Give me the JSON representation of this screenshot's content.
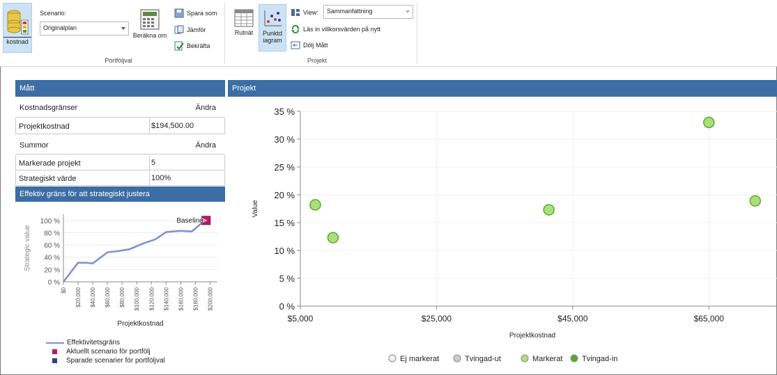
{
  "ribbon": {
    "kostnad_label": "kostnad",
    "scenario_label": "Scenario:",
    "scenario_value": "Originalplan",
    "berakna_om": "Beräkna om",
    "spara_som": "Spara som",
    "jamfor": "Jämför",
    "bekrafta": "Bekräfta",
    "group_portfolj": "Portföljval",
    "rutnat": "Rutnät",
    "punktdiagram_line1": "Punktd",
    "punktdiagram_line2": "iagram",
    "view_label": "View:",
    "view_value": "Sammanfattning",
    "las_in": "Läs in villkorsvärden på nytt",
    "dolj_matt": "Dölj Mått",
    "group_projekt": "Projekt"
  },
  "matt": {
    "header": "Mått",
    "rows": [
      {
        "key": "Kostnadsgränser",
        "value": "Ändra"
      },
      {
        "key": "Projektkostnad",
        "value": "$194,500.00"
      },
      {
        "key": "Summor",
        "value": "Ändra"
      },
      {
        "key": "Markerade projekt",
        "value": "5"
      },
      {
        "key": "Strategiskt värde",
        "value": "100%"
      }
    ]
  },
  "frontier": {
    "header": "Effektiv gräns för att strategiskt justera",
    "baseline_label": "Baseline",
    "legend": [
      {
        "label": "Effektivitetsgräns",
        "color": "#7b8fd0"
      },
      {
        "label": "Aktuellt scenario för portfölj",
        "color": "#c0166a"
      },
      {
        "label": "Sparade scenarier för portföljval",
        "color": "#2d3f8f"
      }
    ]
  },
  "chart_data": [
    {
      "type": "line",
      "title": "",
      "xlabel": "Projektkostnad",
      "ylabel": "Strategic value",
      "x_tick_labels": [
        "$0",
        "$20,000",
        "$40,000",
        "$60,000",
        "$80,000",
        "$100,000",
        "$120,000",
        "$140,000",
        "$160,000",
        "$180,000",
        "$200,000"
      ],
      "y_tick_labels": [
        "0 %",
        "20 %",
        "40 %",
        "60 %",
        "80 %",
        "100 %"
      ],
      "xlim": [
        0,
        210000
      ],
      "ylim": [
        0,
        110
      ],
      "series": [
        {
          "name": "Effektivitetsgräns",
          "x": [
            0,
            20000,
            30000,
            40000,
            60000,
            75000,
            90000,
            110000,
            125000,
            140000,
            160000,
            175000,
            190000
          ],
          "y": [
            0,
            31,
            31,
            30,
            48,
            50,
            53,
            63,
            69,
            81,
            83,
            82,
            97
          ]
        }
      ],
      "current_scenario": {
        "x": 194500,
        "y": 100
      }
    },
    {
      "type": "scatter",
      "title": "",
      "xlabel": "Projektkostnad",
      "ylabel": "Value",
      "x_tick_labels": [
        "$5,000",
        "$25,000",
        "$45,000",
        "$65,000"
      ],
      "y_tick_labels": [
        "0 %",
        "5 %",
        "10 %",
        "15 %",
        "20 %",
        "25 %",
        "30 %",
        "35 %"
      ],
      "xlim": [
        5000,
        75000
      ],
      "ylim": [
        0,
        35
      ],
      "grid": true,
      "legend_position": "bottom",
      "legend": [
        {
          "label": "Ej markerat",
          "color": "#f2f2f2"
        },
        {
          "label": "Tvingad-ut",
          "color": "#c8cbe0"
        },
        {
          "label": "Markerat",
          "color": "#a9e07a"
        },
        {
          "label": "Tvingad-in",
          "color": "#5aa832"
        }
      ],
      "series": [
        {
          "name": "Markerat",
          "x": [
            7200,
            9800,
            41500,
            65000,
            71800
          ],
          "y": [
            18.2,
            12.3,
            17.3,
            33.0,
            18.9
          ]
        }
      ]
    }
  ],
  "projekt": {
    "header": "Projekt"
  }
}
